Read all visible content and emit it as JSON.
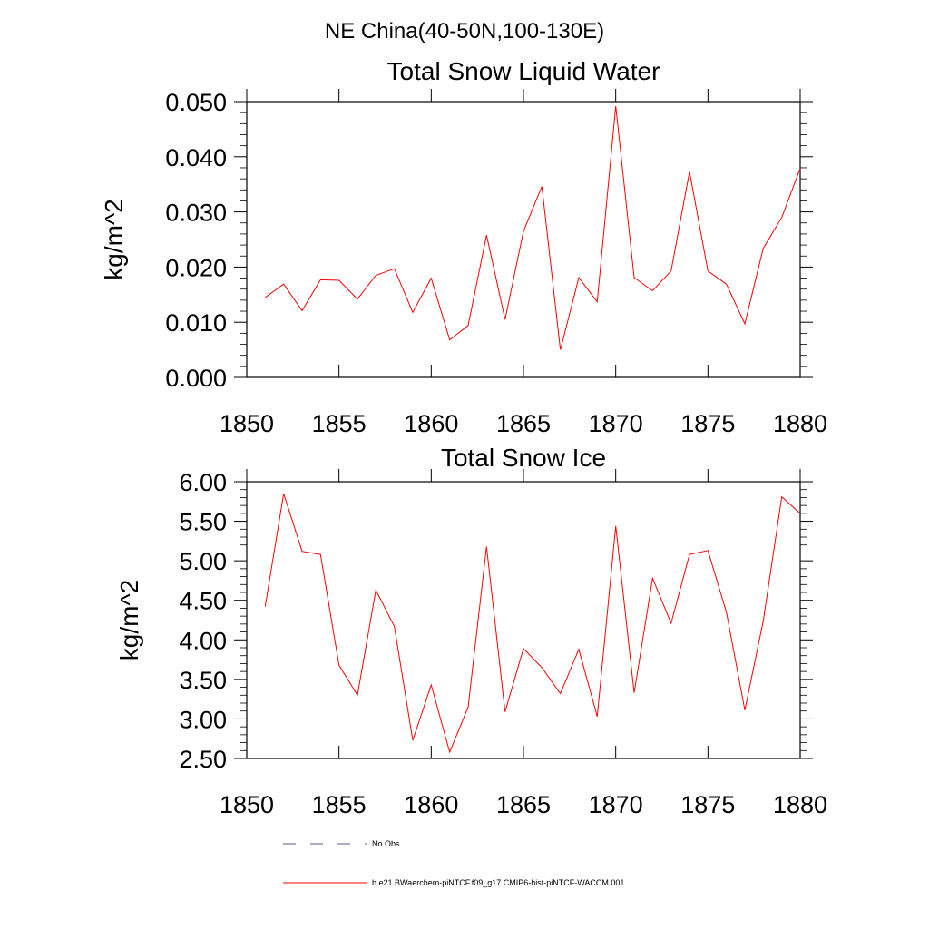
{
  "header": {
    "region_title": "NE China(40-50N,100-130E)"
  },
  "chart_data": [
    {
      "type": "line",
      "title": "Total Snow Liquid Water",
      "xlabel": "",
      "ylabel": "kg/m^2",
      "xlim": [
        1850,
        1880
      ],
      "ylim": [
        0.0,
        0.05
      ],
      "xticks": [
        "1850",
        "1855",
        "1860",
        "1865",
        "1870",
        "1875",
        "1880"
      ],
      "yticks": [
        "0.000",
        "0.010",
        "0.020",
        "0.030",
        "0.040",
        "0.050"
      ],
      "series": [
        {
          "name": "b.e21.BWaerchem-piNTCF.f09_g17.CMIP6-hist-piNTCF-WACCM.001",
          "color": "#ff0000",
          "x": [
            1851,
            1852,
            1853,
            1854,
            1855,
            1856,
            1857,
            1858,
            1859,
            1860,
            1861,
            1862,
            1863,
            1864,
            1865,
            1866,
            1867,
            1868,
            1869,
            1870,
            1871,
            1872,
            1873,
            1874,
            1875,
            1876,
            1877,
            1878,
            1879,
            1880
          ],
          "values": [
            0.0145,
            0.0169,
            0.0121,
            0.0177,
            0.0176,
            0.0142,
            0.0185,
            0.0197,
            0.0118,
            0.018,
            0.0068,
            0.0094,
            0.0258,
            0.0105,
            0.0265,
            0.0346,
            0.005,
            0.0181,
            0.0137,
            0.0492,
            0.0181,
            0.0157,
            0.0193,
            0.0373,
            0.0193,
            0.0169,
            0.0097,
            0.0234,
            0.029,
            0.0379
          ]
        }
      ]
    },
    {
      "type": "line",
      "title": "Total Snow Ice",
      "xlabel": "",
      "ylabel": "kg/m^2",
      "xlim": [
        1850,
        1880
      ],
      "ylim": [
        2.5,
        6.0
      ],
      "xticks": [
        "1850",
        "1855",
        "1860",
        "1865",
        "1870",
        "1875",
        "1880"
      ],
      "yticks": [
        "2.50",
        "3.00",
        "3.50",
        "4.00",
        "4.50",
        "5.00",
        "5.50",
        "6.00"
      ],
      "series": [
        {
          "name": "b.e21.BWaerchem-piNTCF.f09_g17.CMIP6-hist-piNTCF-WACCM.001",
          "color": "#ff0000",
          "x": [
            1851,
            1852,
            1853,
            1854,
            1855,
            1856,
            1857,
            1858,
            1859,
            1860,
            1861,
            1862,
            1863,
            1864,
            1865,
            1866,
            1867,
            1868,
            1869,
            1870,
            1871,
            1872,
            1873,
            1874,
            1875,
            1876,
            1877,
            1878,
            1879,
            1880
          ],
          "values": [
            4.42,
            5.85,
            5.12,
            5.08,
            3.68,
            3.3,
            4.63,
            4.17,
            2.73,
            3.43,
            2.58,
            3.15,
            5.18,
            3.09,
            3.89,
            3.65,
            3.32,
            3.88,
            3.03,
            5.44,
            3.33,
            4.78,
            4.21,
            5.08,
            5.13,
            4.35,
            3.11,
            4.24,
            5.81,
            5.6
          ]
        }
      ]
    }
  ],
  "legend": {
    "placement": "bottom",
    "items": [
      {
        "label": "No Obs",
        "color": "#5a5a8c",
        "style": "dashed"
      },
      {
        "label": "b.e21.BWaerchem-piNTCF.f09_g17.CMIP6-hist-piNTCF-WACCM.001",
        "color": "#ff0000",
        "style": "solid"
      }
    ]
  }
}
